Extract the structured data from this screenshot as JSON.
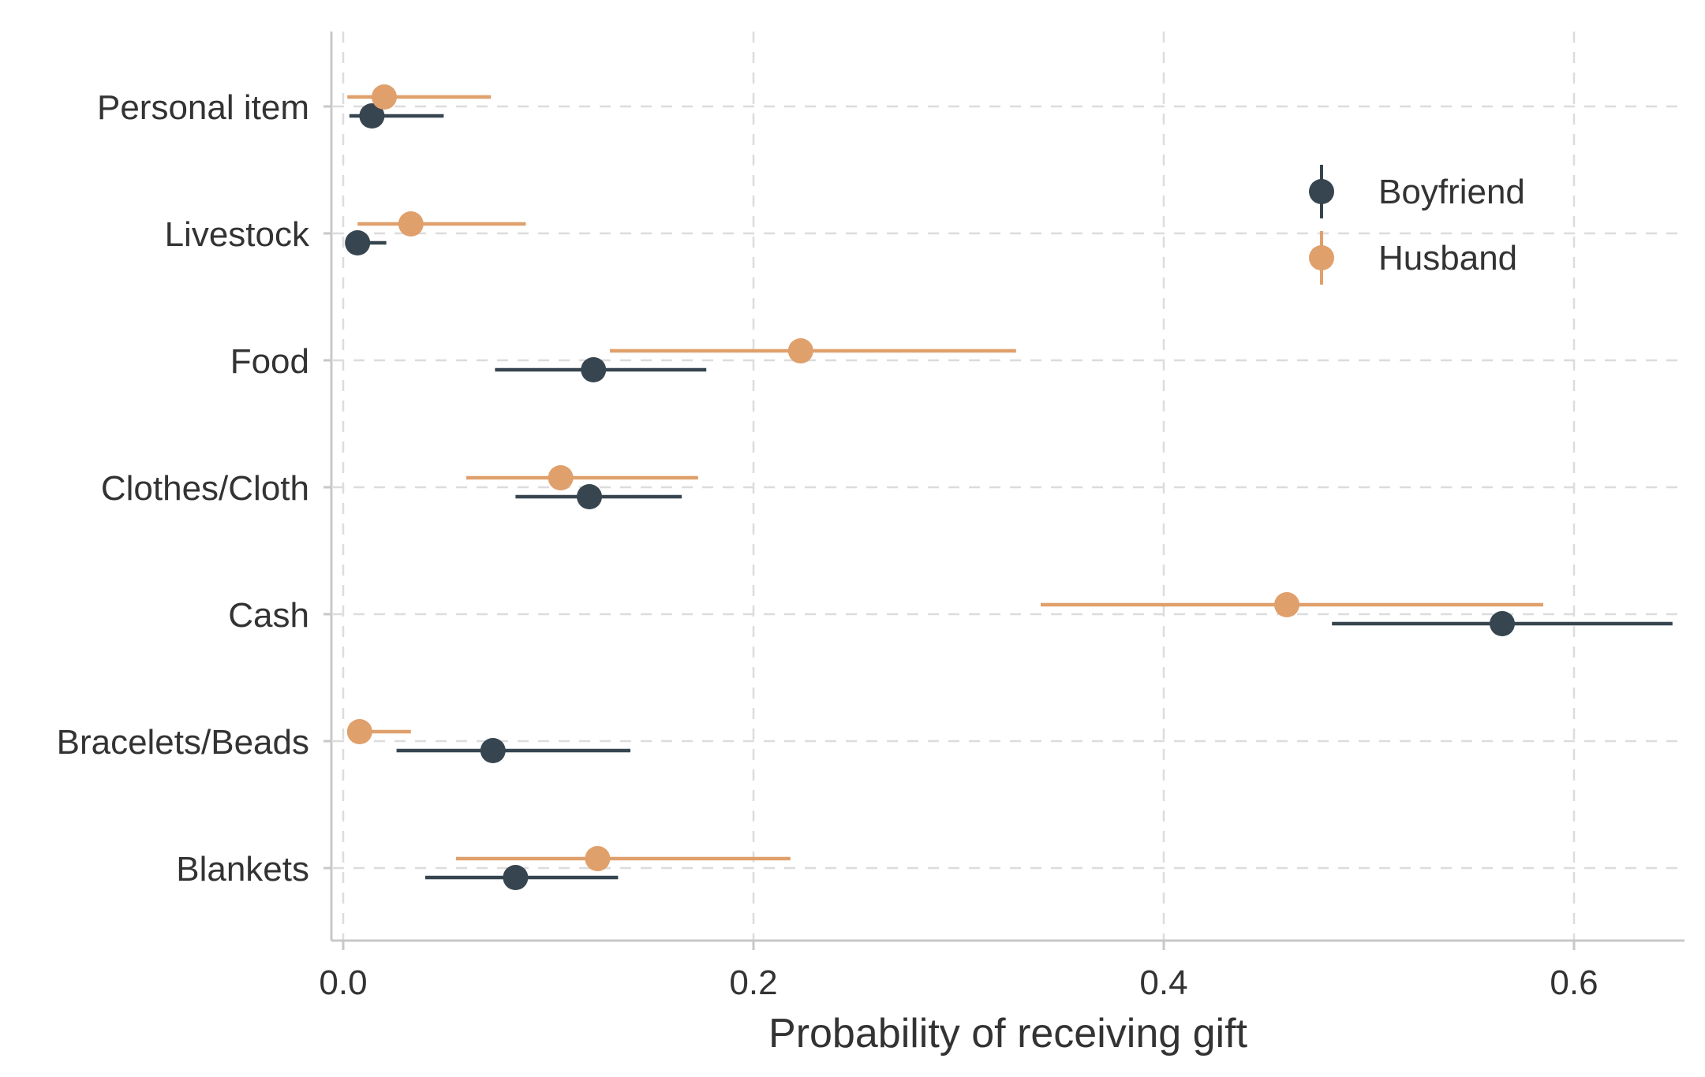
{
  "chart_data": {
    "type": "scatter",
    "subtype": "dot-and-whisker",
    "title": "",
    "xlabel": "Probability of receiving gift",
    "ylabel": "",
    "xlim": [
      0,
      0.65
    ],
    "xticks": [
      0,
      0.2,
      0.4,
      0.6
    ],
    "xtick_labels": [
      "0.0",
      "0.2",
      "0.4",
      "0.6"
    ],
    "grid": true,
    "legend_position": "top-right",
    "categories": [
      "Personal item",
      "Livestock",
      "Food",
      "Clothes/Cloth",
      "Cash",
      "Bracelets/Beads",
      "Blankets"
    ],
    "series": [
      {
        "name": "Boyfriend",
        "color": "#36454F",
        "points": [
          {
            "category": "Personal item",
            "estimate": 0.014,
            "ci_low": 0.003,
            "ci_high": 0.049
          },
          {
            "category": "Livestock",
            "estimate": 0.007,
            "ci_low": 0.002,
            "ci_high": 0.021
          },
          {
            "category": "Food",
            "estimate": 0.122,
            "ci_low": 0.074,
            "ci_high": 0.177
          },
          {
            "category": "Clothes/Cloth",
            "estimate": 0.12,
            "ci_low": 0.084,
            "ci_high": 0.165
          },
          {
            "category": "Cash",
            "estimate": 0.565,
            "ci_low": 0.482,
            "ci_high": 0.648
          },
          {
            "category": "Bracelets/Beads",
            "estimate": 0.073,
            "ci_low": 0.026,
            "ci_high": 0.14
          },
          {
            "category": "Blankets",
            "estimate": 0.084,
            "ci_low": 0.04,
            "ci_high": 0.134
          }
        ]
      },
      {
        "name": "Husband",
        "color": "#E0A06B",
        "points": [
          {
            "category": "Personal item",
            "estimate": 0.02,
            "ci_low": 0.002,
            "ci_high": 0.072
          },
          {
            "category": "Livestock",
            "estimate": 0.033,
            "ci_low": 0.007,
            "ci_high": 0.089
          },
          {
            "category": "Food",
            "estimate": 0.223,
            "ci_low": 0.13,
            "ci_high": 0.328
          },
          {
            "category": "Clothes/Cloth",
            "estimate": 0.106,
            "ci_low": 0.06,
            "ci_high": 0.173
          },
          {
            "category": "Cash",
            "estimate": 0.46,
            "ci_low": 0.34,
            "ci_high": 0.585
          },
          {
            "category": "Bracelets/Beads",
            "estimate": 0.008,
            "ci_low": 0.002,
            "ci_high": 0.033
          },
          {
            "category": "Blankets",
            "estimate": 0.124,
            "ci_low": 0.055,
            "ci_high": 0.218
          }
        ]
      }
    ]
  },
  "colors": {
    "axis": "#c8c8c8",
    "grid": "#dcdcdc",
    "text": "#333333"
  }
}
